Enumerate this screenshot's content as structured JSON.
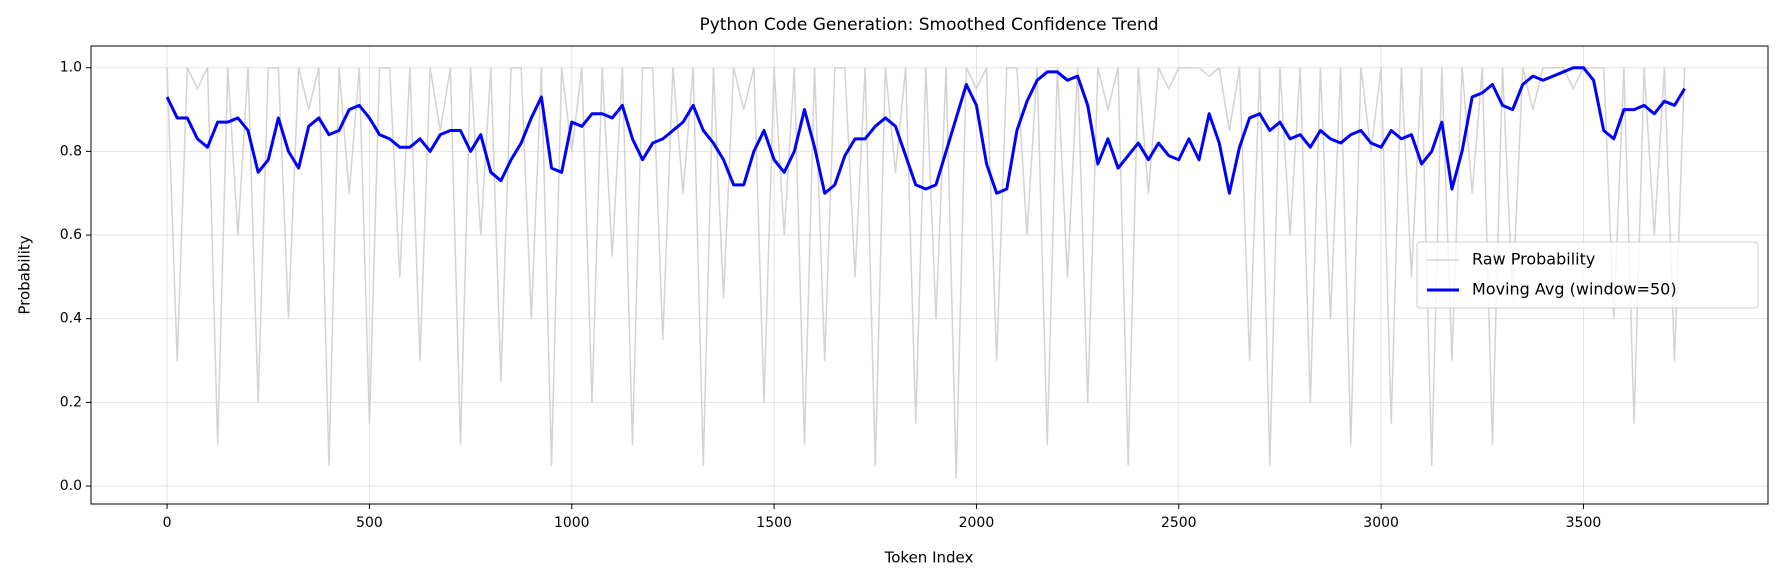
{
  "chart_data": {
    "type": "line",
    "title": "Python Code Generation: Smoothed Confidence Trend",
    "x_label": "Token Index",
    "y_label": "Probability",
    "x": [
      0,
      25,
      50,
      75,
      100,
      125,
      150,
      175,
      200,
      225,
      250,
      275,
      300,
      325,
      350,
      375,
      400,
      425,
      450,
      475,
      500,
      525,
      550,
      575,
      600,
      625,
      650,
      675,
      700,
      725,
      750,
      775,
      800,
      825,
      850,
      875,
      900,
      925,
      950,
      975,
      1000,
      1025,
      1050,
      1075,
      1100,
      1125,
      1150,
      1175,
      1200,
      1225,
      1250,
      1275,
      1300,
      1325,
      1350,
      1375,
      1400,
      1425,
      1450,
      1475,
      1500,
      1525,
      1550,
      1575,
      1600,
      1625,
      1650,
      1675,
      1700,
      1725,
      1750,
      1775,
      1800,
      1825,
      1850,
      1875,
      1900,
      1925,
      1950,
      1975,
      2000,
      2025,
      2050,
      2075,
      2100,
      2125,
      2150,
      2175,
      2200,
      2225,
      2250,
      2275,
      2300,
      2325,
      2350,
      2375,
      2400,
      2425,
      2450,
      2475,
      2500,
      2525,
      2550,
      2575,
      2600,
      2625,
      2650,
      2675,
      2700,
      2725,
      2750,
      2775,
      2800,
      2825,
      2850,
      2875,
      2900,
      2925,
      2950,
      2975,
      3000,
      3025,
      3050,
      3075,
      3100,
      3125,
      3150,
      3175,
      3200,
      3225,
      3250,
      3275,
      3300,
      3325,
      3350,
      3375,
      3400,
      3425,
      3450,
      3475,
      3500,
      3525,
      3550,
      3575,
      3600,
      3625,
      3650,
      3675,
      3700,
      3725,
      3750
    ],
    "series": [
      {
        "name": "Raw Probability",
        "color": "#d3d3d3",
        "width": 1.5,
        "values": [
          1,
          0.3,
          1,
          0.95,
          1,
          0.1,
          1,
          0.6,
          1,
          0.2,
          1,
          1,
          0.4,
          1,
          0.9,
          1,
          0.05,
          1,
          0.7,
          1,
          0.15,
          1,
          1,
          0.5,
          1,
          0.3,
          1,
          0.85,
          1,
          0.1,
          1,
          0.6,
          1,
          0.25,
          1,
          1,
          0.4,
          1,
          0.05,
          1,
          0.8,
          1,
          0.2,
          1,
          0.55,
          1,
          0.1,
          1,
          1,
          0.35,
          1,
          0.7,
          1,
          0.05,
          1,
          0.45,
          1,
          0.9,
          1,
          0.2,
          1,
          0.6,
          1,
          0.1,
          1,
          0.3,
          1,
          1,
          0.5,
          1,
          0.05,
          1,
          0.75,
          1,
          0.15,
          1,
          0.4,
          1,
          0.02,
          1,
          0.95,
          1,
          0.3,
          1,
          1,
          0.6,
          1,
          0.1,
          1,
          0.5,
          1,
          0.2,
          1,
          0.9,
          1,
          0.05,
          1,
          0.7,
          1,
          0.95,
          1,
          1,
          1,
          0.98,
          1,
          0.85,
          1,
          0.3,
          1,
          0.05,
          1,
          0.6,
          1,
          0.2,
          1,
          0.4,
          1,
          0.1,
          1,
          0.8,
          1,
          0.15,
          1,
          0.5,
          1,
          0.05,
          1,
          0.3,
          1,
          0.7,
          1,
          0.1,
          1,
          0.45,
          1,
          0.9,
          1,
          1,
          1,
          0.95,
          1,
          1,
          1,
          0.4,
          1,
          0.15,
          1,
          0.6,
          1,
          0.3,
          1
        ]
      },
      {
        "name": "Moving Avg (window=50)",
        "color": "#0000ff",
        "width": 3,
        "values": [
          0.93,
          0.88,
          0.88,
          0.83,
          0.81,
          0.87,
          0.87,
          0.88,
          0.85,
          0.75,
          0.78,
          0.88,
          0.8,
          0.76,
          0.86,
          0.88,
          0.84,
          0.85,
          0.9,
          0.91,
          0.88,
          0.84,
          0.83,
          0.81,
          0.81,
          0.83,
          0.8,
          0.84,
          0.85,
          0.85,
          0.8,
          0.84,
          0.75,
          0.73,
          0.78,
          0.82,
          0.88,
          0.93,
          0.76,
          0.75,
          0.87,
          0.86,
          0.89,
          0.89,
          0.88,
          0.91,
          0.83,
          0.78,
          0.82,
          0.83,
          0.85,
          0.87,
          0.91,
          0.85,
          0.82,
          0.78,
          0.72,
          0.72,
          0.8,
          0.85,
          0.78,
          0.75,
          0.8,
          0.9,
          0.81,
          0.7,
          0.72,
          0.79,
          0.83,
          0.83,
          0.86,
          0.88,
          0.86,
          0.79,
          0.72,
          0.71,
          0.72,
          0.8,
          0.88,
          0.96,
          0.91,
          0.77,
          0.7,
          0.71,
          0.85,
          0.92,
          0.97,
          0.99,
          0.99,
          0.97,
          0.98,
          0.91,
          0.77,
          0.83,
          0.76,
          0.79,
          0.82,
          0.78,
          0.82,
          0.79,
          0.78,
          0.83,
          0.78,
          0.89,
          0.82,
          0.7,
          0.81,
          0.88,
          0.89,
          0.85,
          0.87,
          0.83,
          0.84,
          0.81,
          0.85,
          0.83,
          0.82,
          0.84,
          0.85,
          0.82,
          0.81,
          0.85,
          0.83,
          0.84,
          0.77,
          0.8,
          0.87,
          0.71,
          0.8,
          0.93,
          0.94,
          0.96,
          0.91,
          0.9,
          0.96,
          0.98,
          0.97,
          0.98,
          0.99,
          1.0,
          1.0,
          0.97,
          0.85,
          0.83,
          0.9,
          0.9,
          0.91,
          0.89,
          0.92,
          0.91,
          0.95
        ]
      }
    ],
    "xlim": [
      -188,
      3956
    ],
    "ylim": [
      -0.043,
      1.052
    ],
    "xticks": [
      0,
      500,
      1000,
      1500,
      2000,
      2500,
      3000,
      3500
    ],
    "yticks": [
      {
        "value": 0,
        "label": "0.0"
      },
      0.2,
      0.4,
      0.6,
      0.8,
      {
        "value": 1,
        "label": "1.0"
      }
    ],
    "grid": true,
    "legend": "center right"
  }
}
